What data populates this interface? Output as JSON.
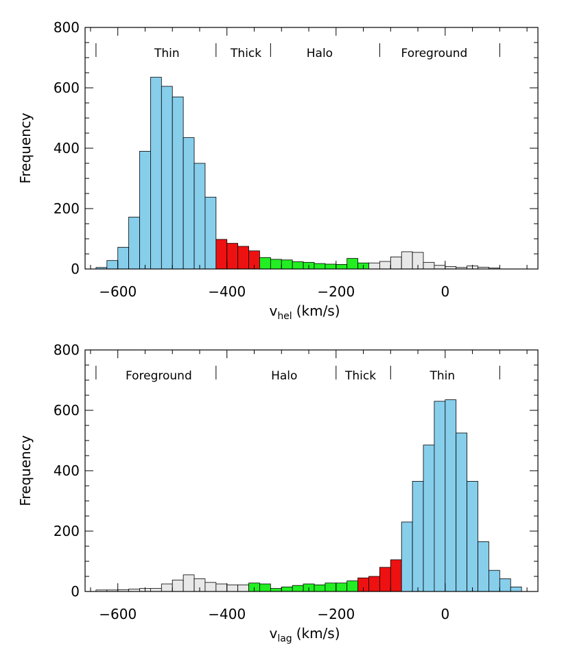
{
  "chart_data": [
    {
      "type": "bar",
      "bin_width_kms": 20,
      "x_start": -640,
      "values": [
        5,
        28,
        72,
        172,
        390,
        635,
        605,
        570,
        435,
        350,
        238,
        98,
        85,
        75,
        60,
        38,
        32,
        30,
        24,
        22,
        18,
        16,
        15,
        35,
        20,
        20,
        25,
        40,
        57,
        55,
        22,
        12,
        8,
        5,
        10,
        6,
        3
      ],
      "region_colors": [
        "#e8e8e8",
        "#22ee22",
        "#ee1111",
        "#87ceeb"
      ],
      "bin_region": [
        3,
        3,
        3,
        3,
        3,
        3,
        3,
        3,
        3,
        3,
        3,
        2,
        2,
        2,
        2,
        1,
        1,
        1,
        1,
        1,
        1,
        1,
        1,
        1,
        1,
        0,
        0,
        0,
        0,
        0,
        0,
        0,
        0,
        0,
        0,
        0,
        0
      ],
      "xlim": [
        -660,
        170
      ],
      "ylim": [
        0,
        800
      ],
      "xticks": [
        -600,
        -400,
        -200,
        0
      ],
      "xtick_labels": [
        "−600",
        "−400",
        "−200",
        "0"
      ],
      "yticks": [
        0,
        200,
        400,
        600,
        800
      ],
      "xlabel": {
        "main": "v",
        "sub": "hel",
        "unit": "(km/s)"
      },
      "ylabel": "Frequency",
      "regions": [
        {
          "label": "Thin",
          "center": -510
        },
        {
          "label": "Thick",
          "center": -365
        },
        {
          "label": "Halo",
          "center": -230
        },
        {
          "label": "Foreground",
          "center": -20
        }
      ],
      "dividers": [
        -640,
        -420,
        -320,
        -120,
        100
      ]
    },
    {
      "type": "bar",
      "bin_width_kms": 20,
      "x_start": -640,
      "values": [
        5,
        5,
        6,
        8,
        10,
        10,
        25,
        38,
        55,
        42,
        30,
        25,
        22,
        22,
        28,
        25,
        10,
        15,
        20,
        25,
        22,
        28,
        28,
        35,
        45,
        50,
        80,
        105,
        230,
        365,
        485,
        630,
        635,
        525,
        365,
        165,
        70,
        42,
        15
      ],
      "region_colors": [
        "#e8e8e8",
        "#22ee22",
        "#ee1111",
        "#87ceeb"
      ],
      "bin_region": [
        0,
        0,
        0,
        0,
        0,
        0,
        0,
        0,
        0,
        0,
        0,
        0,
        0,
        0,
        1,
        1,
        1,
        1,
        1,
        1,
        1,
        1,
        1,
        1,
        2,
        2,
        2,
        2,
        3,
        3,
        3,
        3,
        3,
        3,
        3,
        3,
        3,
        3,
        3
      ],
      "xlim": [
        -660,
        170
      ],
      "ylim": [
        0,
        800
      ],
      "xticks": [
        -600,
        -400,
        -200,
        0
      ],
      "xtick_labels": [
        "−600",
        "−400",
        "−200",
        "0"
      ],
      "yticks": [
        0,
        200,
        400,
        600,
        800
      ],
      "xlabel": {
        "main": "v",
        "sub": "lag",
        "unit": "(km/s)"
      },
      "ylabel": "Frequency",
      "regions": [
        {
          "label": "Foreground",
          "center": -525
        },
        {
          "label": "Halo",
          "center": -295
        },
        {
          "label": "Thick",
          "center": -155
        },
        {
          "label": "Thin",
          "center": -5
        }
      ],
      "dividers": [
        -640,
        -420,
        -200,
        -100,
        100
      ]
    }
  ]
}
